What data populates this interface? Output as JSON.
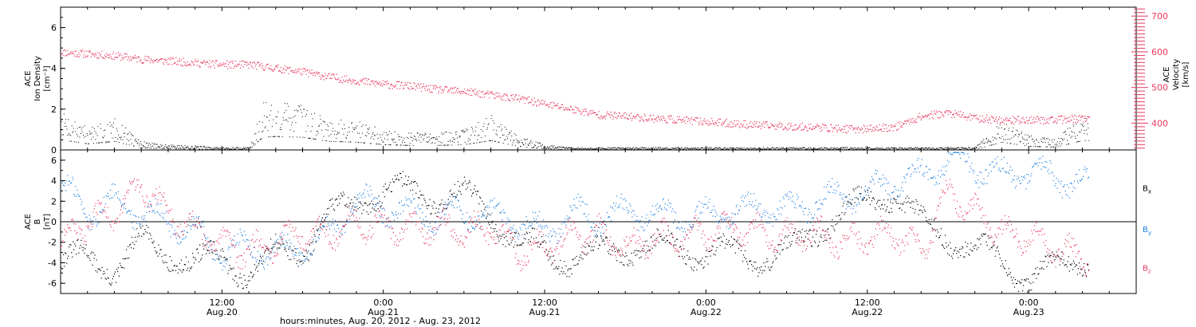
{
  "chart_data": [
    {
      "type": "scatter",
      "panel": "top",
      "left_axis": {
        "label_lines": [
          "ACE",
          "Ion Density",
          "[cm⁻³]"
        ],
        "ticks": [
          "0",
          "2",
          "4",
          "6"
        ],
        "range": [
          0,
          7
        ]
      },
      "right_axis": {
        "label_lines": [
          "ACE",
          "Velocity",
          "[km/s]"
        ],
        "ticks": [
          "400",
          "500",
          "600",
          "700"
        ],
        "range": [
          325,
          725
        ]
      },
      "series": [
        {
          "axis": "left",
          "color": "#000000",
          "x_hours": [
            0,
            2,
            4,
            6,
            8,
            10,
            12,
            14,
            15,
            16,
            18,
            20,
            22,
            24,
            26,
            28,
            30,
            32,
            34,
            36,
            38,
            40,
            42,
            44,
            46,
            48,
            50,
            52,
            54,
            56,
            58,
            60,
            62,
            64,
            66,
            68,
            70,
            72,
            74,
            76
          ],
          "y": [
            1.3,
            0.8,
            1.1,
            0.3,
            0.2,
            0.15,
            0.1,
            0.1,
            1.6,
            1.7,
            1.6,
            1.1,
            1.0,
            0.7,
            0.6,
            0.6,
            0.7,
            1.2,
            0.5,
            0.2,
            0.1,
            0.1,
            0.1,
            0.1,
            0.1,
            0.1,
            0.1,
            0.1,
            0.1,
            0.1,
            0.1,
            0.1,
            0.1,
            0.1,
            0.1,
            0.1,
            1.0,
            0.5,
            0.4,
            1.2
          ]
        },
        {
          "axis": "right",
          "color": "#e8375f",
          "x_hours": [
            0,
            2,
            4,
            6,
            8,
            10,
            12,
            14,
            16,
            18,
            20,
            22,
            24,
            26,
            28,
            30,
            32,
            34,
            36,
            38,
            40,
            42,
            44,
            46,
            48,
            50,
            52,
            54,
            56,
            58,
            60,
            62,
            64,
            66,
            68,
            70,
            72,
            74,
            76
          ],
          "y": [
            600,
            595,
            590,
            580,
            575,
            570,
            565,
            565,
            555,
            545,
            530,
            520,
            510,
            505,
            495,
            490,
            480,
            470,
            455,
            440,
            425,
            420,
            415,
            410,
            405,
            400,
            395,
            392,
            390,
            385,
            385,
            390,
            420,
            430,
            415,
            410,
            410,
            410,
            415
          ]
        }
      ]
    },
    {
      "type": "scatter",
      "panel": "bottom",
      "left_axis": {
        "label_lines": [
          "ACE",
          "B",
          "[nT]"
        ],
        "ticks": [
          "-6",
          "-4",
          "-2",
          "0",
          "2",
          "4",
          "6"
        ],
        "range": [
          -7,
          7
        ]
      },
      "legend": [
        {
          "base": "B",
          "sub": "x",
          "color": "#000000"
        },
        {
          "base": "B",
          "sub": "y",
          "color": "#1f7fe0"
        },
        {
          "base": "B",
          "sub": "z",
          "color": "#e8375f"
        }
      ],
      "series": [
        {
          "name": "Bx",
          "color": "#000000",
          "x_hours": [
            0,
            2,
            4,
            6,
            8,
            10,
            12,
            14,
            16,
            18,
            20,
            22,
            24,
            26,
            28,
            30,
            32,
            34,
            36,
            38,
            40,
            42,
            44,
            46,
            48,
            50,
            52,
            54,
            56,
            58,
            60,
            62,
            64,
            66,
            68,
            70,
            72,
            74,
            76
          ],
          "y": [
            -4.0,
            -3.5,
            -4.5,
            -2.0,
            -3.0,
            -4.0,
            -3.5,
            -5.0,
            -3.0,
            -2.5,
            0.5,
            2.0,
            3.0,
            3.0,
            2.5,
            2.5,
            1.0,
            -2.0,
            -3.0,
            -3.5,
            -3.0,
            -2.5,
            -2.5,
            -2.5,
            -3.0,
            -3.0,
            -3.5,
            -3.0,
            -1.0,
            1.0,
            2.0,
            3.0,
            0.0,
            -1.5,
            -2.5,
            -4.0,
            -5.5,
            -4.5,
            -3.5
          ]
        },
        {
          "name": "By",
          "color": "#1f7fe0",
          "x_hours": [
            0,
            2,
            4,
            6,
            8,
            10,
            12,
            14,
            16,
            18,
            20,
            22,
            24,
            26,
            28,
            30,
            32,
            34,
            36,
            38,
            40,
            42,
            44,
            46,
            48,
            50,
            52,
            54,
            56,
            58,
            60,
            62,
            64,
            66,
            68,
            70,
            72,
            74,
            76
          ],
          "y": [
            3.5,
            1.0,
            2.0,
            1.0,
            0.0,
            -1.0,
            -3.0,
            -2.5,
            -3.0,
            -2.5,
            -1.0,
            2.0,
            1.5,
            1.0,
            0.5,
            1.0,
            0.5,
            0.0,
            -1.0,
            1.0,
            0.5,
            1.0,
            1.0,
            0.5,
            0.5,
            1.0,
            1.5,
            1.0,
            2.0,
            2.5,
            3.0,
            4.0,
            4.5,
            6.0,
            5.5,
            4.5,
            5.0,
            4.5,
            3.5
          ]
        },
        {
          "name": "Bz",
          "color": "#e8375f",
          "x_hours": [
            0,
            2,
            4,
            6,
            8,
            10,
            12,
            14,
            16,
            18,
            20,
            22,
            24,
            26,
            28,
            30,
            32,
            34,
            36,
            38,
            40,
            42,
            44,
            46,
            48,
            50,
            52,
            54,
            56,
            58,
            60,
            62,
            64,
            66,
            68,
            70,
            72,
            74,
            76
          ],
          "y": [
            -2.0,
            0.0,
            1.0,
            3.5,
            1.0,
            -1.0,
            -2.0,
            -3.0,
            -2.0,
            -1.0,
            -1.0,
            0.0,
            -0.5,
            -0.5,
            -0.5,
            -1.0,
            -0.5,
            -3.0,
            -2.5,
            -1.5,
            -1.0,
            -2.5,
            -1.5,
            -1.5,
            -1.0,
            -0.5,
            -1.0,
            -1.5,
            -1.0,
            -2.0,
            -1.5,
            -1.0,
            -3.0,
            3.0,
            1.0,
            -1.0,
            -1.5,
            -2.5,
            -3.5
          ]
        }
      ]
    }
  ],
  "x_axis": {
    "range_hours": [
      0,
      80
    ],
    "tick_marks": [
      {
        "hour": 12,
        "time": "12:00",
        "date": "Aug.20"
      },
      {
        "hour": 24,
        "time": "0:00",
        "date": "Aug.21"
      },
      {
        "hour": 36,
        "time": "12:00",
        "date": "Aug.21"
      },
      {
        "hour": 48,
        "time": "0:00",
        "date": "Aug.22"
      },
      {
        "hour": 60,
        "time": "12:00",
        "date": "Aug.22"
      },
      {
        "hour": 72,
        "time": "0:00",
        "date": "Aug.23"
      }
    ],
    "label": "hours:minutes, Aug. 20, 2012 - Aug. 23, 2012"
  }
}
